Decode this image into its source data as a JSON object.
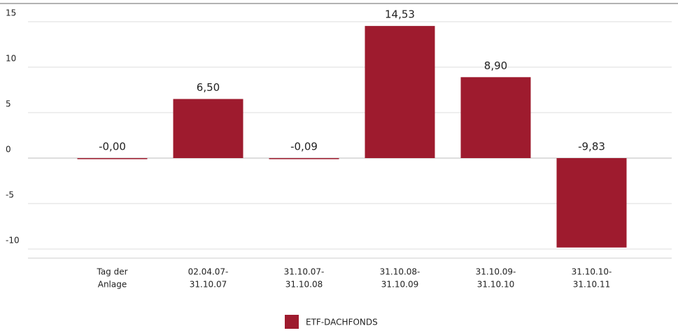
{
  "chart_data": {
    "type": "bar",
    "categories": [
      [
        "Tag der",
        "Anlage"
      ],
      [
        "02.04.07-",
        "31.10.07"
      ],
      [
        "31.10.07-",
        "31.10.08"
      ],
      [
        "31.10.08-",
        "31.10.09"
      ],
      [
        "31.10.09-",
        "31.10.10"
      ],
      [
        "31.10.10-",
        "31.10.11"
      ]
    ],
    "series": [
      {
        "name": "ETF-DACHFONDS",
        "color": "#9e1b2e",
        "values": [
          -0.004,
          6.5,
          -0.09,
          14.53,
          8.9,
          -9.83
        ],
        "value_labels": [
          "-0,00",
          "6,50",
          "-0,09",
          "14,53",
          "8,90",
          "-9,83"
        ]
      }
    ],
    "ylim": [
      -11,
      17
    ],
    "yticks": [
      -10,
      -5,
      0,
      5,
      10,
      15
    ],
    "grid": true,
    "legend": "bottom"
  }
}
